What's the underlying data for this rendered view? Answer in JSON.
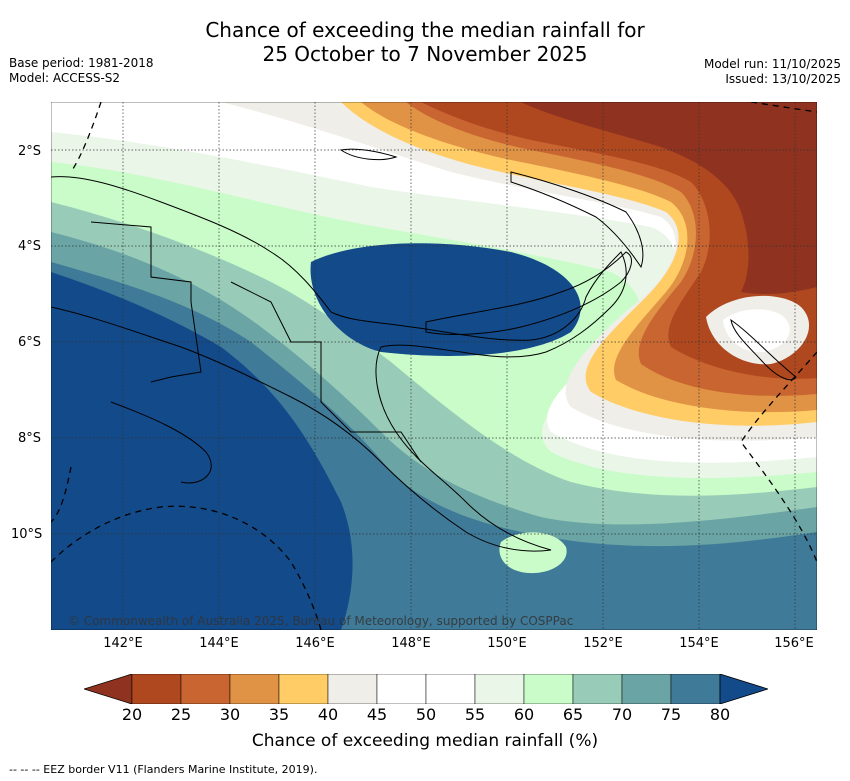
{
  "title": {
    "line1": "Chance of exceeding the median rainfall for",
    "line2": "25 October to 7 November 2025"
  },
  "meta": {
    "base_period": "Base period: 1981-2018",
    "model": "Model: ACCESS-S2",
    "model_run": "Model run: 11/10/2025",
    "issued": "Issued: 13/10/2025"
  },
  "credit": "© Commonwealth of Australia 2025, Bureau of Meteorology, supported by COSPPac",
  "axes": {
    "lon_labels": [
      "142°E",
      "144°E",
      "146°E",
      "148°E",
      "150°E",
      "152°E",
      "154°E",
      "156°E"
    ],
    "lat_labels": [
      "2°S",
      "4°S",
      "6°S",
      "8°S",
      "10°S"
    ]
  },
  "colorbar": {
    "ticks": [
      "20",
      "25",
      "30",
      "35",
      "40",
      "45",
      "50",
      "55",
      "60",
      "65",
      "70",
      "75",
      "80"
    ],
    "colors": [
      "#8f3320",
      "#b0481f",
      "#c96530",
      "#e09245",
      "#ffcc66",
      "#f0eee8",
      "#ffffff",
      "#ffffff",
      "#eaf6e8",
      "#c9fcc9",
      "#99ccb8",
      "#6aa4a4",
      "#3f7a98",
      "#134a8a"
    ],
    "label": "Chance of exceeding median rainfall (%)"
  },
  "legend": "-- -- -- EEZ border V11 (Flanders Marine Institute, 2019)."
}
